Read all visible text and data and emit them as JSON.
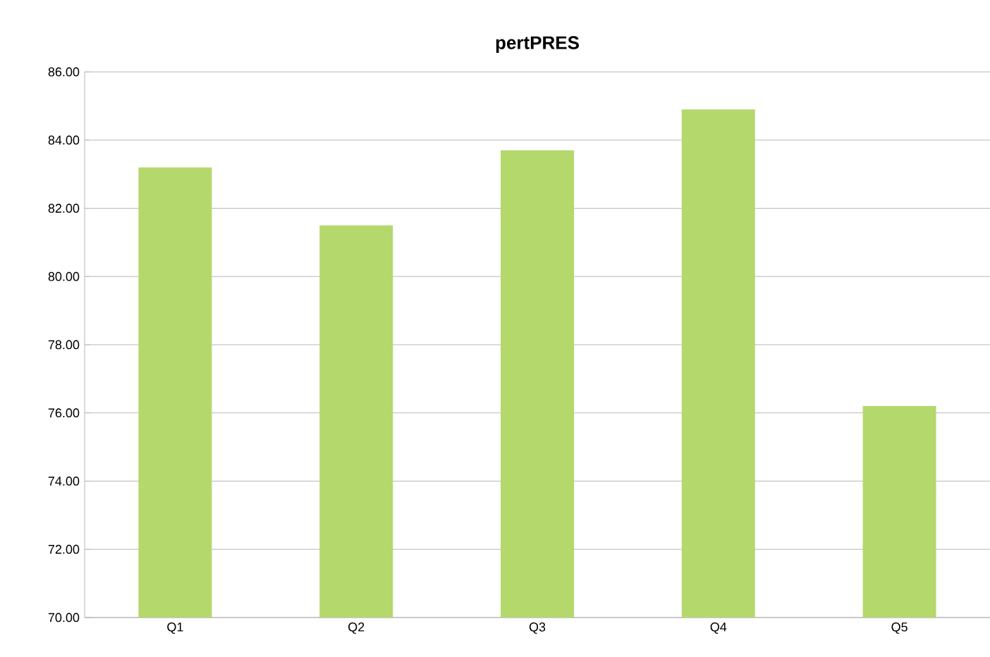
{
  "chart_data": {
    "type": "bar",
    "title": "pertPRES",
    "categories": [
      "Q1",
      "Q2",
      "Q3",
      "Q4",
      "Q5"
    ],
    "values": [
      83.2,
      81.5,
      83.7,
      84.9,
      76.2
    ],
    "color": "#b4d86c",
    "ylim": [
      70,
      86
    ],
    "yticks": [
      {
        "value": 70,
        "label": "70.00"
      },
      {
        "value": 72,
        "label": "72.00"
      },
      {
        "value": 74,
        "label": "74.00"
      },
      {
        "value": 76,
        "label": "76.00"
      },
      {
        "value": 78,
        "label": "78.00"
      },
      {
        "value": 80,
        "label": "80.00"
      },
      {
        "value": 82,
        "label": "82.00"
      },
      {
        "value": 84,
        "label": "84.00"
      },
      {
        "value": 86,
        "label": "86.00"
      }
    ],
    "grid": "y"
  }
}
